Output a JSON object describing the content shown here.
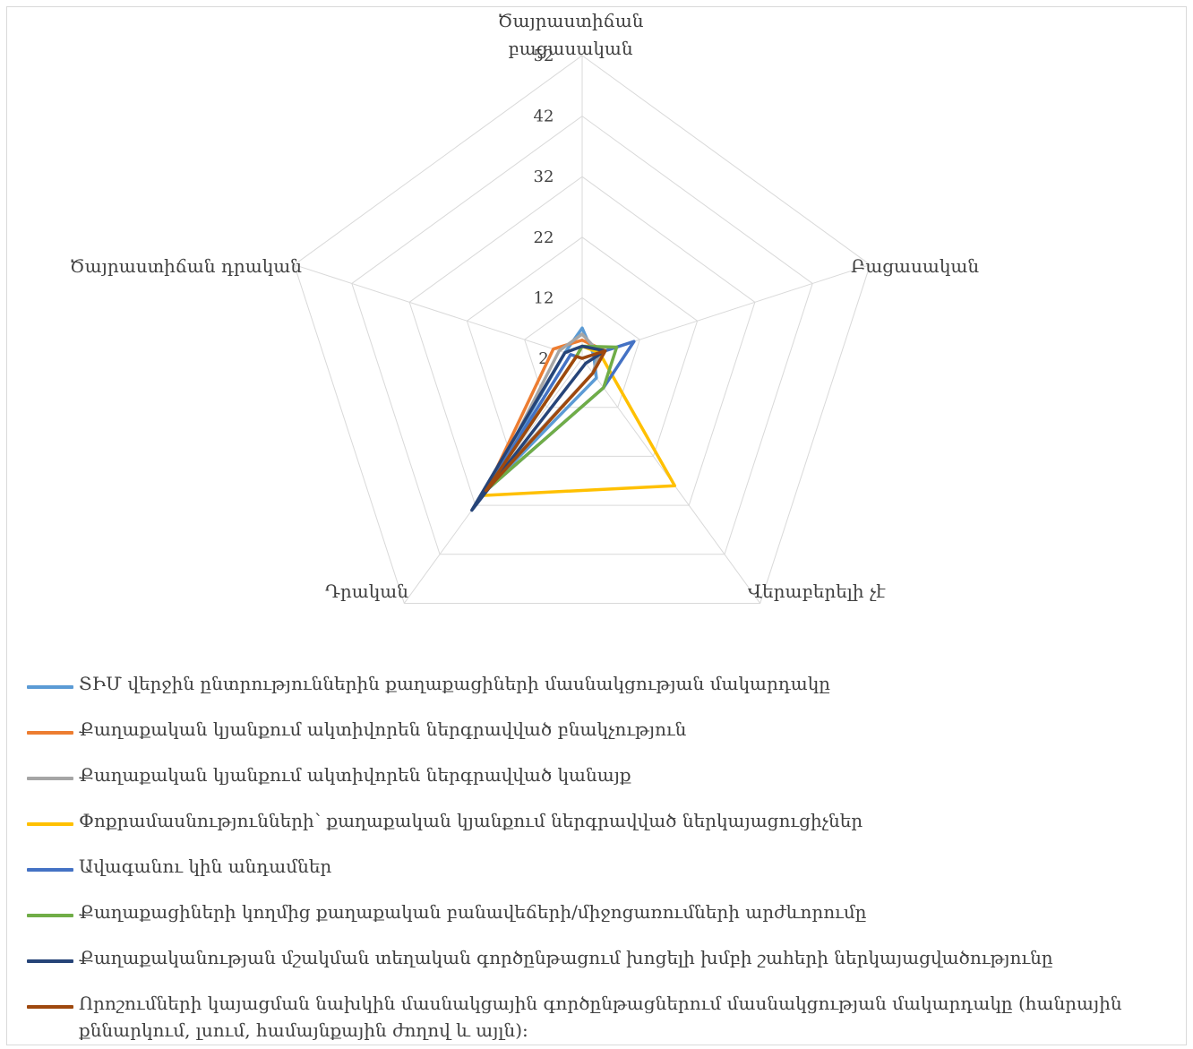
{
  "chart_data": {
    "type": "radar",
    "axes": [
      "Ծայրաստիճան բացասական",
      "Բացասական",
      "Վերաբերելի չէ",
      "Դրական",
      "Ծայրաստիճան դրական"
    ],
    "ticks": [
      2,
      12,
      22,
      32,
      42,
      52
    ],
    "range": [
      2,
      52
    ],
    "grid": true,
    "legend_position": "bottom",
    "series": [
      {
        "name": "ՏԻՄ վերջին ընտրություններին քաղաքացիների մասնակցության մակարդակը",
        "color": "#5b9bd5",
        "values": [
          7,
          4,
          6,
          29,
          5
        ]
      },
      {
        "name": "Քաղաքական կյանքում ակտիվորեն ներգրավված բնակչություն",
        "color": "#ed7d31",
        "values": [
          5,
          6,
          5,
          29,
          7
        ]
      },
      {
        "name": "Քաղաքական կյանքում ակտիվորեն ներգրավված կանայք",
        "color": "#a5a5a5",
        "values": [
          6,
          5,
          5,
          27,
          6
        ]
      },
      {
        "name": "Փոքրամասնությունների՝ քաղաքական կյանքում ներգրավված ներկայացուցիչներ",
        "color": "#ffc000",
        "values": [
          4,
          5,
          28,
          30,
          3
        ]
      },
      {
        "name": "Ավագանու կին անդամներ",
        "color": "#4472c4",
        "values": [
          2,
          11,
          8,
          29,
          4
        ]
      },
      {
        "name": "Քաղաքացիների կողմից քաղաքական բանավեճերի/միջոցառումների արժևորումը",
        "color": "#70ad47",
        "values": [
          4,
          8,
          8,
          29,
          3
        ]
      },
      {
        "name": "Քաղաքականության մշակման տեղական գործընթացում խոցելի խմբի շահերի ներկայացվածությունը",
        "color": "#264478",
        "values": [
          4,
          6,
          3,
          33,
          5
        ]
      },
      {
        "name": "Որոշումների կայացման նախկին մասնակցային գործընթացներում մասնակցության մակարդակը (հանրային քննարկում, լսում, համայնքային ժողով և այլն):",
        "color": "#9e480e",
        "values": [
          2,
          6,
          5,
          29,
          3
        ]
      }
    ]
  }
}
